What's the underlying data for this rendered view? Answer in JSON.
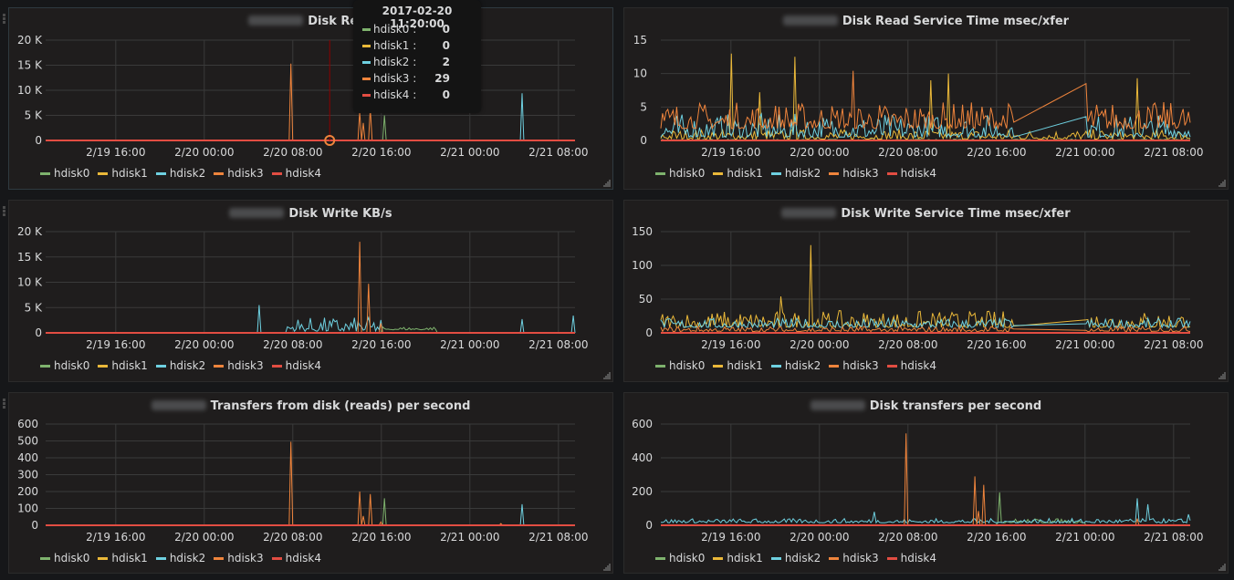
{
  "dashboard": {
    "series_colors": {
      "hdisk0": "#7eb26d",
      "hdisk1": "#eab839",
      "hdisk2": "#6ed0e0",
      "hdisk3": "#ef843c",
      "hdisk4": "#e24d42"
    },
    "legend": [
      "hdisk0",
      "hdisk1",
      "hdisk2",
      "hdisk3",
      "hdisk4"
    ]
  },
  "tooltip": {
    "time": "2017-02-20 11:20:00",
    "rows": [
      {
        "name": "hdisk0 :",
        "value": "0"
      },
      {
        "name": "hdisk1 :",
        "value": "0"
      },
      {
        "name": "hdisk2 :",
        "value": "2"
      },
      {
        "name": "hdisk3 :",
        "value": "29"
      },
      {
        "name": "hdisk4 :",
        "value": "0"
      }
    ]
  },
  "chart_data": [
    {
      "type": "line",
      "title": "Disk Read KB/s",
      "title_visible": "Disk Reac",
      "host_blurred": true,
      "xlabel": "",
      "ylabel": "",
      "x_range": [
        "2017-02-19 09:40",
        "2017-02-21 09:30"
      ],
      "x_ticks": [
        "2/19 16:00",
        "2/20 00:00",
        "2/20 08:00",
        "2/20 16:00",
        "2/21 00:00",
        "2/21 08:00"
      ],
      "y_ticks": [
        "0",
        "5 K",
        "10 K",
        "15 K",
        "20 K"
      ],
      "ylim": [
        0,
        20000
      ],
      "grid": true,
      "legend_position": "bottom-left",
      "crosshair_time": "2017-02-20 11:20",
      "series": [
        {
          "name": "hdisk0",
          "spikes": [
            {
              "t": "2017-02-20 16:20",
              "v": 5000
            }
          ]
        },
        {
          "name": "hdisk1",
          "spikes": []
        },
        {
          "name": "hdisk2",
          "spikes": [
            {
              "t": "2017-02-21 04:40",
              "v": 9400
            }
          ]
        },
        {
          "name": "hdisk3",
          "spikes": [
            {
              "t": "2017-02-20 07:50",
              "v": 15300
            },
            {
              "t": "2017-02-20 14:00",
              "v": 5800
            },
            {
              "t": "2017-02-20 14:20",
              "v": 3500
            },
            {
              "t": "2017-02-20 15:00",
              "v": 6500
            }
          ]
        },
        {
          "name": "hdisk4",
          "spikes": []
        }
      ]
    },
    {
      "type": "line",
      "title": "Disk Read Service Time msec/xfer",
      "host_blurred": true,
      "x_range": [
        "2017-02-19 09:40",
        "2017-02-21 09:30"
      ],
      "x_ticks": [
        "2/19 16:00",
        "2/20 00:00",
        "2/20 08:00",
        "2/20 16:00",
        "2/21 00:00",
        "2/21 08:00"
      ],
      "y_ticks": [
        "0",
        "5",
        "10",
        "15"
      ],
      "ylim": [
        0,
        15
      ],
      "grid": true,
      "legend_position": "bottom-left",
      "series": [
        {
          "name": "hdisk0",
          "noise": {
            "base": 0,
            "amp": 0.2
          }
        },
        {
          "name": "hdisk1",
          "noise": {
            "base": 0.2,
            "amp": 1.5
          },
          "spikes": [
            {
              "t": "2017-02-19 16:00",
              "v": 13
            },
            {
              "t": "2017-02-19 21:50",
              "v": 12.5
            },
            {
              "t": "2017-02-19 18:40",
              "v": 7.2
            },
            {
              "t": "2017-02-20 11:40",
              "v": 10
            },
            {
              "t": "2017-02-20 10:00",
              "v": 9
            },
            {
              "t": "2017-02-21 04:40",
              "v": 9.3
            }
          ]
        },
        {
          "name": "hdisk2",
          "noise": {
            "base": 0.5,
            "amp": 3.5
          },
          "gap": [
            "2017-02-20 17:40",
            "2017-02-21 00:00"
          ]
        },
        {
          "name": "hdisk3",
          "noise": {
            "base": 1.8,
            "amp": 4
          },
          "spikes": [
            {
              "t": "2017-02-20 03:00",
              "v": 10.4
            },
            {
              "t": "2017-02-21 00:10",
              "v": 8.5
            }
          ],
          "gap": [
            "2017-02-20 17:40",
            "2017-02-21 00:00"
          ]
        },
        {
          "name": "hdisk4",
          "noise": {
            "base": 0,
            "amp": 0
          }
        }
      ]
    },
    {
      "type": "line",
      "title": "Disk Write KB/s",
      "host_blurred": true,
      "x_range": [
        "2017-02-19 09:40",
        "2017-02-21 09:30"
      ],
      "x_ticks": [
        "2/19 16:00",
        "2/20 00:00",
        "2/20 08:00",
        "2/20 16:00",
        "2/21 00:00",
        "2/21 08:00"
      ],
      "y_ticks": [
        "0",
        "5 K",
        "10 K",
        "15 K",
        "20 K"
      ],
      "ylim": [
        0,
        20000
      ],
      "grid": true,
      "legend_position": "bottom-left",
      "series": [
        {
          "name": "hdisk0",
          "noise": {
            "base": 600,
            "amp": 600,
            "from": "2017-02-20 16:00",
            "to": "2017-02-20 21:00"
          }
        },
        {
          "name": "hdisk1",
          "spikes": []
        },
        {
          "name": "hdisk2",
          "noise": {
            "base": 300,
            "amp": 2800,
            "from": "2017-02-20 07:30",
            "to": "2017-02-20 16:00"
          },
          "spikes": [
            {
              "t": "2017-02-20 05:00",
              "v": 5500
            },
            {
              "t": "2017-02-21 04:40",
              "v": 2700
            },
            {
              "t": "2017-02-21 09:20",
              "v": 3400
            }
          ]
        },
        {
          "name": "hdisk3",
          "spikes": [
            {
              "t": "2017-02-20 14:00",
              "v": 18000
            },
            {
              "t": "2017-02-20 14:50",
              "v": 9700
            },
            {
              "t": "2017-02-20 16:00",
              "v": 1900
            }
          ]
        },
        {
          "name": "hdisk4",
          "spikes": []
        }
      ]
    },
    {
      "type": "line",
      "title": "Disk Write Service Time msec/xfer",
      "host_blurred": true,
      "x_range": [
        "2017-02-19 09:40",
        "2017-02-21 09:30"
      ],
      "x_ticks": [
        "2/19 16:00",
        "2/20 00:00",
        "2/20 08:00",
        "2/20 16:00",
        "2/21 00:00",
        "2/21 08:00"
      ],
      "y_ticks": [
        "0",
        "50",
        "100",
        "150"
      ],
      "ylim": [
        0,
        150
      ],
      "grid": true,
      "legend_position": "bottom-left",
      "series": [
        {
          "name": "hdisk0",
          "noise": {
            "base": 0,
            "amp": 0
          }
        },
        {
          "name": "hdisk1",
          "noise": {
            "base": 8,
            "amp": 25
          },
          "spikes": [
            {
              "t": "2017-02-19 23:10",
              "v": 130
            },
            {
              "t": "2017-02-19 20:30",
              "v": 54
            }
          ],
          "gap": [
            "2017-02-20 17:40",
            "2017-02-21 00:00"
          ]
        },
        {
          "name": "hdisk2",
          "noise": {
            "base": 8,
            "amp": 14
          },
          "gap": [
            "2017-02-20 17:40",
            "2017-02-21 00:00"
          ]
        },
        {
          "name": "hdisk3",
          "noise": {
            "base": 2,
            "amp": 8
          },
          "gap": [
            "2017-02-20 17:40",
            "2017-02-21 00:00"
          ]
        },
        {
          "name": "hdisk4",
          "noise": {
            "base": 0,
            "amp": 0
          }
        }
      ]
    },
    {
      "type": "line",
      "title": "Transfers from disk (reads) per second",
      "host_blurred": true,
      "x_range": [
        "2017-02-19 09:40",
        "2017-02-21 09:30"
      ],
      "x_ticks": [
        "2/19 16:00",
        "2/20 00:00",
        "2/20 08:00",
        "2/20 16:00",
        "2/21 00:00",
        "2/21 08:00"
      ],
      "y_ticks": [
        "0",
        "100",
        "200",
        "300",
        "400",
        "500",
        "600"
      ],
      "ylim": [
        0,
        600
      ],
      "grid": true,
      "legend_position": "bottom-left",
      "series": [
        {
          "name": "hdisk0",
          "spikes": [
            {
              "t": "2017-02-20 16:20",
              "v": 160
            }
          ]
        },
        {
          "name": "hdisk1",
          "spikes": []
        },
        {
          "name": "hdisk2",
          "spikes": [
            {
              "t": "2017-02-21 04:40",
              "v": 125
            }
          ]
        },
        {
          "name": "hdisk3",
          "spikes": [
            {
              "t": "2017-02-20 07:50",
              "v": 495
            },
            {
              "t": "2017-02-20 14:00",
              "v": 200
            },
            {
              "t": "2017-02-20 14:20",
              "v": 55
            },
            {
              "t": "2017-02-20 15:00",
              "v": 185
            },
            {
              "t": "2017-02-20 16:00",
              "v": 20
            },
            {
              "t": "2017-02-21 02:50",
              "v": 10
            }
          ]
        },
        {
          "name": "hdisk4",
          "spikes": []
        }
      ]
    },
    {
      "type": "line",
      "title": "Disk transfers per second",
      "host_blurred": true,
      "x_range": [
        "2017-02-19 09:40",
        "2017-02-21 09:30"
      ],
      "x_ticks": [
        "2/19 16:00",
        "2/20 00:00",
        "2/20 08:00",
        "2/20 16:00",
        "2/21 00:00",
        "2/21 08:00"
      ],
      "y_ticks": [
        "0",
        "200",
        "400",
        "600"
      ],
      "ylim": [
        0,
        600
      ],
      "grid": true,
      "legend_position": "bottom-left",
      "series": [
        {
          "name": "hdisk0",
          "noise": {
            "base": 15,
            "amp": 25,
            "from": "2017-02-20 16:00",
            "to": "2017-02-21 00:00"
          },
          "spikes": [
            {
              "t": "2017-02-20 16:20",
              "v": 195
            }
          ]
        },
        {
          "name": "hdisk1",
          "spikes": []
        },
        {
          "name": "hdisk2",
          "noise": {
            "base": 15,
            "amp": 25
          },
          "spikes": [
            {
              "t": "2017-02-20 05:00",
              "v": 80
            },
            {
              "t": "2017-02-21 04:40",
              "v": 160
            },
            {
              "t": "2017-02-21 05:40",
              "v": 125
            },
            {
              "t": "2017-02-21 09:20",
              "v": 65
            }
          ]
        },
        {
          "name": "hdisk3",
          "spikes": [
            {
              "t": "2017-02-20 07:50",
              "v": 545
            },
            {
              "t": "2017-02-20 14:00",
              "v": 290
            },
            {
              "t": "2017-02-20 14:20",
              "v": 85
            },
            {
              "t": "2017-02-20 14:50",
              "v": 240
            },
            {
              "t": "2017-02-21 04:40",
              "v": 40
            }
          ]
        },
        {
          "name": "hdisk4",
          "spikes": []
        }
      ]
    }
  ]
}
